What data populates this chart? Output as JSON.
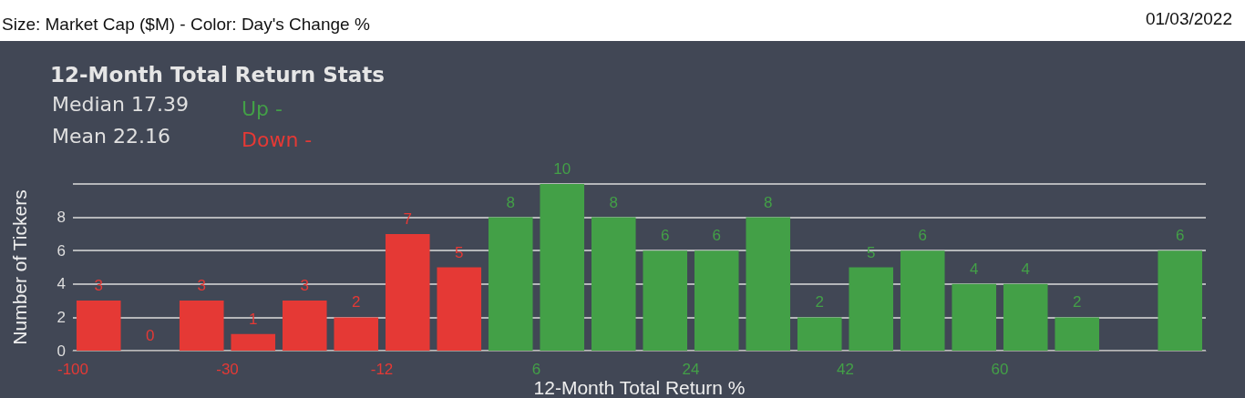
{
  "chart_data": {
    "type": "bar",
    "title": "12-Month Total Return Stats",
    "xlabel": "12-Month Total Return %",
    "ylabel": "Number of Tickers",
    "annotations": [
      "Size: Market Cap ($M) - Color: Day's Change %",
      "01/03/2022",
      "Median 17.39",
      "Mean 22.16",
      "-100",
      "-30",
      "-12",
      "6",
      "24",
      "42",
      "60"
    ],
    "categories": [
      null,
      null,
      null,
      null,
      null,
      null,
      null,
      null,
      null,
      null,
      null,
      null,
      null,
      null,
      null,
      null,
      null,
      null,
      null,
      null,
      null,
      null
    ],
    "series": [
      {
        "name": "Up -",
        "color": "#43a047",
        "values": [
          null,
          null,
          null,
          null,
          null,
          null,
          null,
          null,
          8,
          10,
          8,
          6,
          6,
          8,
          2,
          5,
          6,
          4,
          4,
          2,
          0,
          6
        ],
        "value_labels": [
          null,
          null,
          null,
          null,
          null,
          null,
          null,
          null,
          "8",
          "10",
          "8",
          "6",
          "6",
          "8",
          "2",
          "5",
          "6",
          "4",
          "4",
          "2",
          null,
          "6"
        ]
      },
      {
        "name": "Down -",
        "color": "#e53935",
        "values": [
          3,
          0,
          3,
          1,
          3,
          2,
          7,
          5,
          null,
          null,
          null,
          null,
          null,
          null,
          null,
          null,
          null,
          null,
          null,
          null,
          null,
          null
        ],
        "value_labels": [
          "3",
          "0",
          "3",
          "1",
          "3",
          "2",
          "7",
          "5",
          null,
          null,
          null,
          null,
          null,
          null,
          null,
          null,
          null,
          null,
          null,
          null,
          null,
          null
        ]
      }
    ],
    "ylim": [
      0,
      10
    ],
    "yticks": [
      0,
      2,
      4,
      6,
      8,
      {
        "value": 10,
        "label": null
      }
    ],
    "grid": "y",
    "legend": "top left"
  }
}
